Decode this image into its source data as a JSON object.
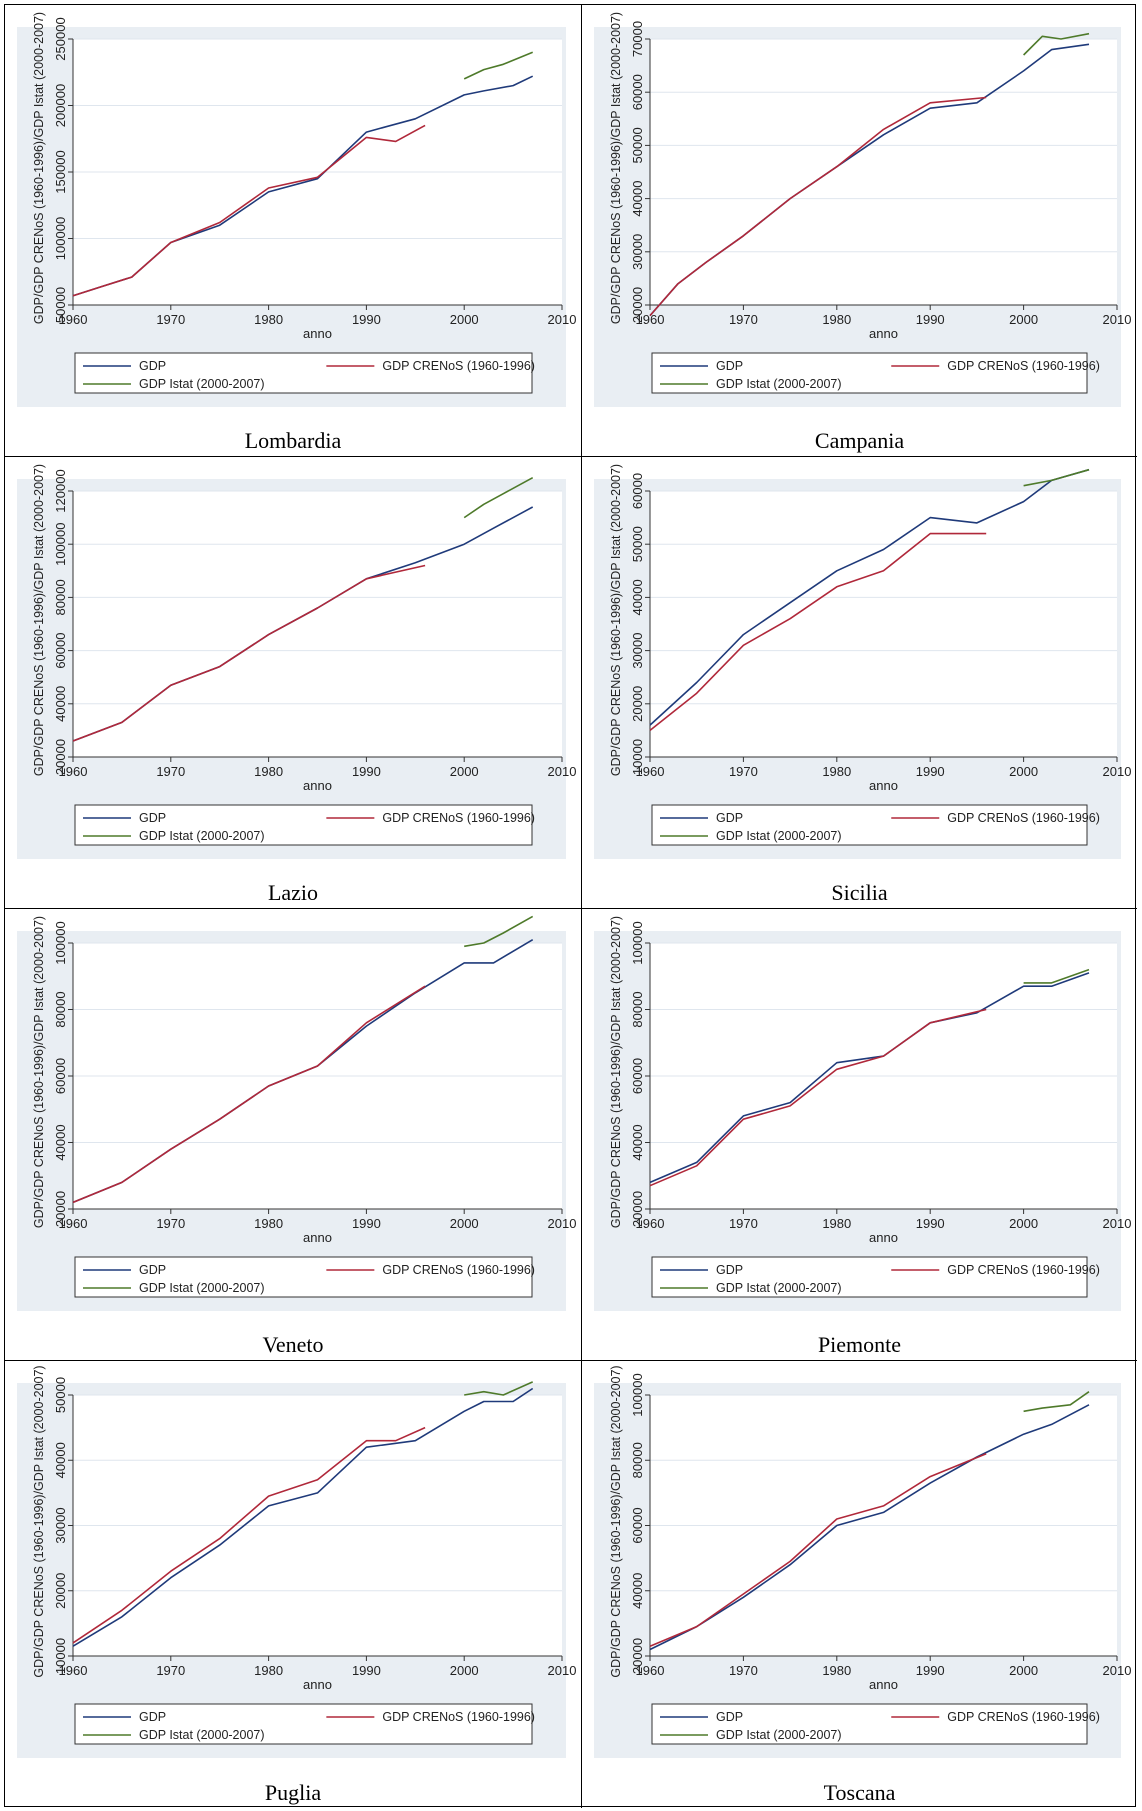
{
  "colors": {
    "panel_bg": "#e9eef3",
    "plot_bg": "#ffffff",
    "grid": "#dfe6ee",
    "gdp": "#1f3a7a",
    "crenos": "#b0283a",
    "istat": "#4e7a2a"
  },
  "legend_labels": {
    "gdp": "GDP",
    "crenos": "GDP CRENoS (1960-1996)",
    "istat": "GDP Istat (2000-2007)"
  },
  "chart_data": [
    {
      "type": "line",
      "region": "Lombardia",
      "xlabel": "anno",
      "ylabel": "GDP/GDP CRENoS (1960-1996)/GDP Istat (2000-2007)",
      "xlim": [
        1960,
        2010
      ],
      "xticks": [
        1960,
        1970,
        1980,
        1990,
        2000,
        2010
      ],
      "ylim": [
        50000,
        250000
      ],
      "yticks": [
        50000,
        100000,
        150000,
        200000,
        250000
      ],
      "series": [
        {
          "key": "gdp",
          "name": "GDP",
          "x": [
            1960,
            1963,
            1966,
            1970,
            1975,
            1980,
            1985,
            1990,
            1995,
            2000,
            2002,
            2005,
            2007
          ],
          "y": [
            57000,
            64000,
            71000,
            97000,
            110000,
            135000,
            145000,
            180000,
            190000,
            208000,
            211000,
            215000,
            222000
          ]
        },
        {
          "key": "crenos",
          "name": "GDP CRENoS (1960-1996)",
          "x": [
            1960,
            1963,
            1966,
            1970,
            1975,
            1980,
            1985,
            1990,
            1993,
            1996
          ],
          "y": [
            57000,
            64000,
            71000,
            97000,
            112000,
            138000,
            146000,
            176000,
            173000,
            185000
          ]
        },
        {
          "key": "istat",
          "name": "GDP Istat (2000-2007)",
          "x": [
            2000,
            2002,
            2004,
            2007
          ],
          "y": [
            220000,
            227000,
            231000,
            240000
          ]
        }
      ]
    },
    {
      "type": "line",
      "region": "Campania",
      "xlabel": "anno",
      "ylabel": "GDP/GDP CRENoS (1960-1996)/GDP Istat (2000-2007)",
      "xlim": [
        1960,
        2010
      ],
      "xticks": [
        1960,
        1970,
        1980,
        1990,
        2000,
        2010
      ],
      "ylim": [
        20000,
        70000
      ],
      "yticks": [
        20000,
        30000,
        40000,
        50000,
        60000,
        70000
      ],
      "series": [
        {
          "key": "gdp",
          "name": "GDP",
          "x": [
            1960,
            1963,
            1966,
            1970,
            1975,
            1980,
            1985,
            1990,
            1995,
            2000,
            2003,
            2007
          ],
          "y": [
            18000,
            24000,
            28000,
            33000,
            40000,
            46000,
            52000,
            57000,
            58000,
            64000,
            68000,
            69000
          ]
        },
        {
          "key": "crenos",
          "name": "GDP CRENoS (1960-1996)",
          "x": [
            1960,
            1963,
            1966,
            1970,
            1975,
            1980,
            1985,
            1990,
            1996
          ],
          "y": [
            18000,
            24000,
            28000,
            33000,
            40000,
            46000,
            53000,
            58000,
            59000
          ]
        },
        {
          "key": "istat",
          "name": "GDP Istat (2000-2007)",
          "x": [
            2000,
            2002,
            2004,
            2007
          ],
          "y": [
            67000,
            70500,
            70000,
            71000
          ]
        }
      ]
    },
    {
      "type": "line",
      "region": "Lazio",
      "xlabel": "anno",
      "ylabel": "GDP/GDP CRENoS (1960-1996)/GDP Istat (2000-2007)",
      "xlim": [
        1960,
        2010
      ],
      "xticks": [
        1960,
        1970,
        1980,
        1990,
        2000,
        2010
      ],
      "ylim": [
        20000,
        120000
      ],
      "yticks": [
        20000,
        40000,
        60000,
        80000,
        100000,
        120000
      ],
      "series": [
        {
          "key": "gdp",
          "name": "GDP",
          "x": [
            1960,
            1965,
            1970,
            1975,
            1980,
            1985,
            1990,
            1995,
            2000,
            2003,
            2007
          ],
          "y": [
            26000,
            33000,
            47000,
            54000,
            66000,
            76000,
            87000,
            93000,
            100000,
            106000,
            114000
          ]
        },
        {
          "key": "crenos",
          "name": "GDP CRENoS (1960-1996)",
          "x": [
            1960,
            1965,
            1970,
            1975,
            1980,
            1985,
            1990,
            1996
          ],
          "y": [
            26000,
            33000,
            47000,
            54000,
            66000,
            76000,
            87000,
            92000
          ]
        },
        {
          "key": "istat",
          "name": "GDP Istat (2000-2007)",
          "x": [
            2000,
            2002,
            2004,
            2007
          ],
          "y": [
            110000,
            115000,
            119000,
            125000
          ]
        }
      ]
    },
    {
      "type": "line",
      "region": "Sicilia",
      "xlabel": "anno",
      "ylabel": "GDP/GDP CRENoS (1960-1996)/GDP Istat (2000-2007)",
      "xlim": [
        1960,
        2010
      ],
      "xticks": [
        1960,
        1970,
        1980,
        1990,
        2000,
        2010
      ],
      "ylim": [
        10000,
        60000
      ],
      "yticks": [
        10000,
        20000,
        30000,
        40000,
        50000,
        60000
      ],
      "series": [
        {
          "key": "gdp",
          "name": "GDP",
          "x": [
            1960,
            1965,
            1970,
            1975,
            1980,
            1985,
            1990,
            1995,
            2000,
            2003,
            2007
          ],
          "y": [
            16000,
            24000,
            33000,
            39000,
            45000,
            49000,
            55000,
            54000,
            58000,
            62000,
            64000
          ]
        },
        {
          "key": "crenos",
          "name": "GDP CRENoS (1960-1996)",
          "x": [
            1960,
            1965,
            1970,
            1975,
            1980,
            1985,
            1990,
            1996
          ],
          "y": [
            15000,
            22000,
            31000,
            36000,
            42000,
            45000,
            52000,
            52000
          ]
        },
        {
          "key": "istat",
          "name": "GDP Istat (2000-2007)",
          "x": [
            2000,
            2003,
            2005,
            2007
          ],
          "y": [
            61000,
            62000,
            63000,
            64000
          ]
        }
      ]
    },
    {
      "type": "line",
      "region": "Veneto",
      "xlabel": "anno",
      "ylabel": "GDP/GDP CRENoS (1960-1996)/GDP Istat (2000-2007)",
      "xlim": [
        1960,
        2010
      ],
      "xticks": [
        1960,
        1970,
        1980,
        1990,
        2000,
        2010
      ],
      "ylim": [
        20000,
        100000
      ],
      "yticks": [
        20000,
        40000,
        60000,
        80000,
        100000
      ],
      "series": [
        {
          "key": "gdp",
          "name": "GDP",
          "x": [
            1960,
            1965,
            1970,
            1975,
            1980,
            1985,
            1990,
            1995,
            2000,
            2003,
            2007
          ],
          "y": [
            22000,
            28000,
            38000,
            47000,
            57000,
            63000,
            75000,
            85000,
            94000,
            94000,
            101000
          ]
        },
        {
          "key": "crenos",
          "name": "GDP CRENoS (1960-1996)",
          "x": [
            1960,
            1965,
            1970,
            1975,
            1980,
            1985,
            1990,
            1996
          ],
          "y": [
            22000,
            28000,
            38000,
            47000,
            57000,
            63000,
            76000,
            87000
          ]
        },
        {
          "key": "istat",
          "name": "GDP Istat (2000-2007)",
          "x": [
            2000,
            2002,
            2004,
            2007
          ],
          "y": [
            99000,
            100000,
            103000,
            108000
          ]
        }
      ]
    },
    {
      "type": "line",
      "region": "Piemonte",
      "xlabel": "anno",
      "ylabel": "GDP/GDP CRENoS (1960-1996)/GDP Istat (2000-2007)",
      "xlim": [
        1960,
        2010
      ],
      "xticks": [
        1960,
        1970,
        1980,
        1990,
        2000,
        2010
      ],
      "ylim": [
        20000,
        100000
      ],
      "yticks": [
        20000,
        40000,
        60000,
        80000,
        100000
      ],
      "series": [
        {
          "key": "gdp",
          "name": "GDP",
          "x": [
            1960,
            1965,
            1970,
            1975,
            1980,
            1985,
            1990,
            1995,
            2000,
            2003,
            2007
          ],
          "y": [
            28000,
            34000,
            48000,
            52000,
            64000,
            66000,
            76000,
            79000,
            87000,
            87000,
            91000
          ]
        },
        {
          "key": "crenos",
          "name": "GDP CRENoS (1960-1996)",
          "x": [
            1960,
            1965,
            1970,
            1975,
            1980,
            1985,
            1990,
            1996
          ],
          "y": [
            27000,
            33000,
            47000,
            51000,
            62000,
            66000,
            76000,
            80000
          ]
        },
        {
          "key": "istat",
          "name": "GDP Istat (2000-2007)",
          "x": [
            2000,
            2003,
            2005,
            2007
          ],
          "y": [
            88000,
            88000,
            90000,
            92000
          ]
        }
      ]
    },
    {
      "type": "line",
      "region": "Puglia",
      "xlabel": "anno",
      "ylabel": "GDP/GDP CRENoS (1960-1996)/GDP Istat (2000-2007)",
      "xlim": [
        1960,
        2010
      ],
      "xticks": [
        1960,
        1970,
        1980,
        1990,
        2000,
        2010
      ],
      "ylim": [
        10000,
        50000
      ],
      "yticks": [
        10000,
        20000,
        30000,
        40000,
        50000
      ],
      "series": [
        {
          "key": "gdp",
          "name": "GDP",
          "x": [
            1960,
            1965,
            1970,
            1975,
            1980,
            1985,
            1990,
            1995,
            2000,
            2002,
            2005,
            2007
          ],
          "y": [
            11500,
            16000,
            22000,
            27000,
            33000,
            35000,
            42000,
            43000,
            47500,
            49000,
            49000,
            51000
          ]
        },
        {
          "key": "crenos",
          "name": "GDP CRENoS (1960-1996)",
          "x": [
            1960,
            1965,
            1970,
            1975,
            1980,
            1985,
            1990,
            1993,
            1996
          ],
          "y": [
            12000,
            17000,
            23000,
            28000,
            34500,
            37000,
            43000,
            43000,
            45000
          ]
        },
        {
          "key": "istat",
          "name": "GDP Istat (2000-2007)",
          "x": [
            2000,
            2002,
            2004,
            2007
          ],
          "y": [
            50000,
            50500,
            50000,
            52000
          ]
        }
      ]
    },
    {
      "type": "line",
      "region": "Toscana",
      "xlabel": "anno",
      "ylabel": "GDP/GDP CRENoS (1960-1996)/GDP Istat (2000-2007)",
      "xlim": [
        1960,
        2010
      ],
      "xticks": [
        1960,
        1970,
        1980,
        1990,
        2000,
        2010
      ],
      "ylim": [
        20000,
        100000
      ],
      "yticks": [
        20000,
        40000,
        60000,
        80000,
        100000
      ],
      "series": [
        {
          "key": "gdp",
          "name": "GDP",
          "x": [
            1960,
            1965,
            1970,
            1975,
            1980,
            1985,
            1990,
            1995,
            2000,
            2003,
            2007
          ],
          "y": [
            22000,
            29000,
            38000,
            48000,
            60000,
            64000,
            73000,
            81000,
            88000,
            91000,
            97000
          ]
        },
        {
          "key": "crenos",
          "name": "GDP CRENoS (1960-1996)",
          "x": [
            1960,
            1965,
            1970,
            1975,
            1980,
            1985,
            1990,
            1996
          ],
          "y": [
            23000,
            29000,
            39000,
            49000,
            62000,
            66000,
            75000,
            82000
          ]
        },
        {
          "key": "istat",
          "name": "GDP Istat (2000-2007)",
          "x": [
            2000,
            2002,
            2005,
            2007
          ],
          "y": [
            95000,
            96000,
            97000,
            101000
          ]
        }
      ]
    }
  ]
}
